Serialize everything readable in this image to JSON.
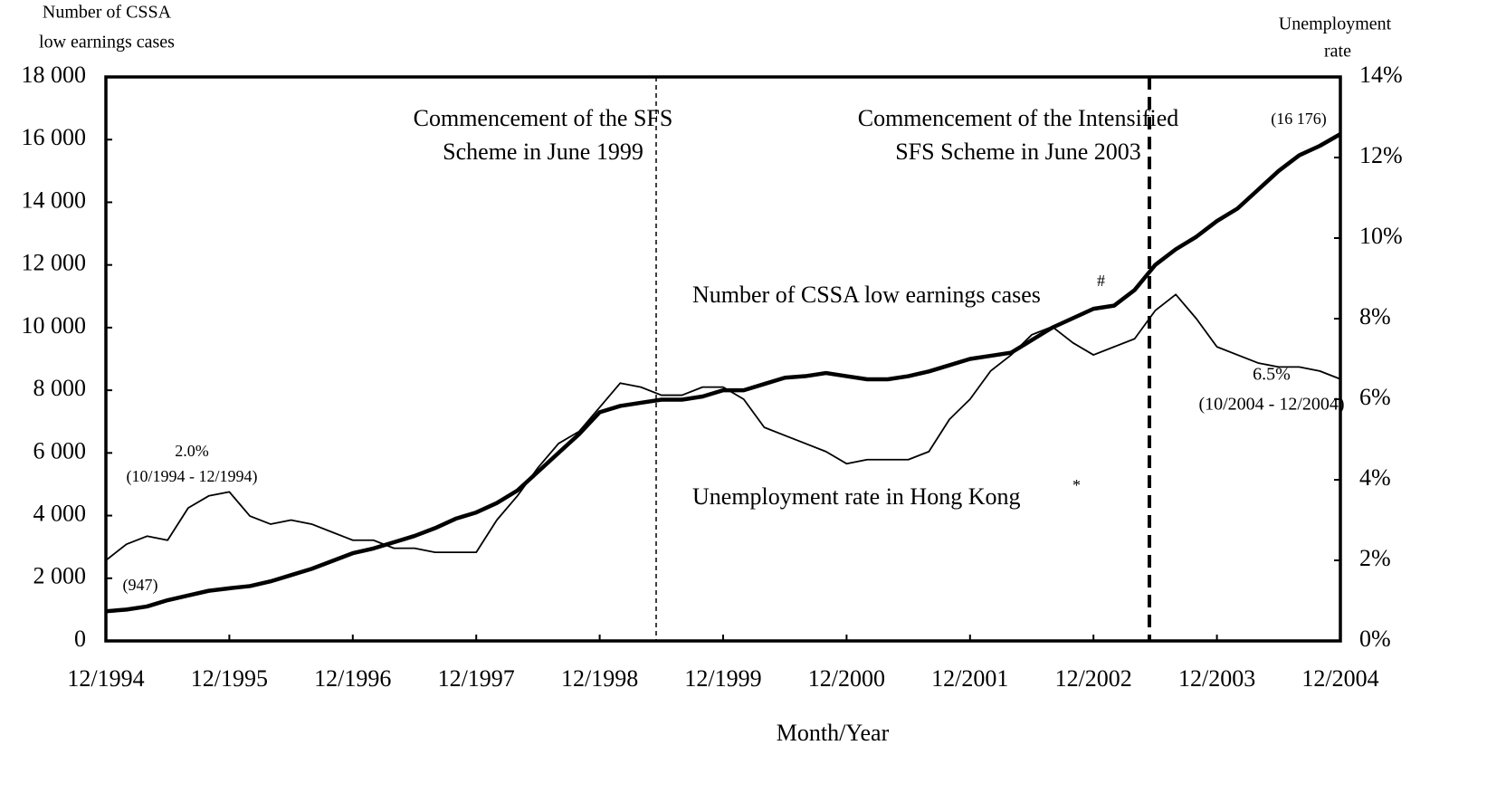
{
  "chart_data": {
    "type": "line",
    "y_label": [
      "Number of CSSA",
      "low earnings cases"
    ],
    "y2_label": [
      "Unemployment",
      "rate"
    ],
    "x_label": "Month/Year",
    "categories": [
      "12/1994",
      null,
      null,
      null,
      null,
      null,
      "12/1995",
      null,
      null,
      null,
      null,
      null,
      "12/1996",
      null,
      null,
      null,
      null,
      null,
      "12/1997",
      null,
      null,
      null,
      null,
      null,
      "12/1998",
      null,
      null,
      null,
      null,
      null,
      "12/1999",
      null,
      null,
      null,
      null,
      null,
      "12/2000",
      null,
      null,
      null,
      null,
      null,
      "12/2001",
      null,
      null,
      null,
      null,
      null,
      "12/2002",
      null,
      null,
      null,
      null,
      null,
      "12/2003",
      null,
      null,
      null,
      null,
      null,
      "12/2004"
    ],
    "series": [
      {
        "name": "Number of CSSA low earnings cases",
        "color": "#000000",
        "axis": "y",
        "values": [
          947,
          1000,
          1100,
          1300,
          1450,
          1600,
          1680,
          1750,
          1900,
          2100,
          2300,
          2550,
          2800,
          2950,
          3150,
          3350,
          3600,
          3900,
          4100,
          4400,
          4800,
          5400,
          6000,
          6600,
          7300,
          7500,
          7600,
          7700,
          7700,
          7800,
          8000,
          8000,
          8200,
          8400,
          8450,
          8550,
          8450,
          8350,
          8350,
          8450,
          8600,
          8800,
          9000,
          9100,
          9200,
          9600,
          10000,
          10300,
          10600,
          10700,
          11200,
          12000,
          12500,
          12900,
          13400,
          13800,
          14400,
          15000,
          15500,
          15800,
          16176
        ],
        "value_labels": [
          "(947)",
          null,
          null,
          null,
          null,
          null,
          null,
          null,
          null,
          null,
          null,
          null,
          null,
          null,
          null,
          null,
          null,
          null,
          null,
          null,
          null,
          null,
          null,
          null,
          null,
          null,
          null,
          null,
          null,
          null,
          null,
          null,
          null,
          null,
          null,
          null,
          null,
          null,
          null,
          null,
          null,
          null,
          null,
          null,
          null,
          null,
          null,
          null,
          null,
          null,
          null,
          null,
          null,
          null,
          null,
          null,
          null,
          null,
          null,
          null,
          "(16 176)"
        ]
      },
      {
        "name": "Unemployment rate in Hong Kong",
        "color": "#000000",
        "axis": "y2",
        "values": [
          2.0,
          2.4,
          2.6,
          2.5,
          3.3,
          3.6,
          3.7,
          3.1,
          2.9,
          3.0,
          2.9,
          2.7,
          2.5,
          2.5,
          2.3,
          2.3,
          2.2,
          2.2,
          2.2,
          3.0,
          3.6,
          4.3,
          4.9,
          5.2,
          5.8,
          6.4,
          6.3,
          6.1,
          6.1,
          6.3,
          6.3,
          6.0,
          5.3,
          5.1,
          4.9,
          4.7,
          4.4,
          4.5,
          4.5,
          4.5,
          4.7,
          5.5,
          6.0,
          6.7,
          7.1,
          7.6,
          7.8,
          7.4,
          7.1,
          7.3,
          7.5,
          8.2,
          8.6,
          8.0,
          7.3,
          7.1,
          6.9,
          6.8,
          6.8,
          6.7,
          6.5
        ],
        "value_labels": [
          "2.0%",
          null,
          null,
          null,
          null,
          null,
          null,
          null,
          null,
          null,
          null,
          null,
          null,
          null,
          null,
          null,
          null,
          null,
          null,
          null,
          null,
          null,
          null,
          null,
          null,
          null,
          null,
          null,
          null,
          null,
          null,
          null,
          null,
          null,
          null,
          null,
          null,
          null,
          null,
          null,
          null,
          null,
          null,
          null,
          null,
          null,
          null,
          null,
          null,
          null,
          null,
          null,
          null,
          null,
          null,
          null,
          null,
          null,
          null,
          null,
          "6.5%"
        ]
      }
    ],
    "ylim": [
      0,
      18000
    ],
    "yticks": [
      0,
      {
        "value": 2000,
        "label": "2 000"
      },
      {
        "value": 4000,
        "label": "4 000"
      },
      {
        "value": 6000,
        "label": "6 000"
      },
      {
        "value": 8000,
        "label": "8 000"
      },
      {
        "value": 10000,
        "label": "10 000"
      },
      {
        "value": 12000,
        "label": "12 000"
      },
      {
        "value": 14000,
        "label": "14 000"
      },
      {
        "value": 16000,
        "label": "16 000"
      },
      {
        "value": 18000,
        "label": "18 000"
      }
    ],
    "y2lim": [
      0,
      14
    ],
    "y2ticks": [
      {
        "value": 0,
        "label": "0%"
      },
      {
        "value": 2,
        "label": "2%"
      },
      {
        "value": 4,
        "label": "4%"
      },
      {
        "value": 6,
        "label": "6%"
      },
      {
        "value": 8,
        "label": "8%"
      },
      {
        "value": 10,
        "label": "10%"
      },
      {
        "value": 12,
        "label": "12%"
      },
      {
        "value": 14,
        "label": "14%"
      }
    ],
    "grid": false,
    "annotations": [
      "Commencement of the SFS",
      "Scheme in June 1999",
      "Commencement of the Intensified",
      "SFS Scheme in June 2003",
      "Number of CSSA low earnings cases",
      "#",
      "Unemployment rate in Hong Kong",
      "*",
      "(10/1994 - 12/1994)",
      "(10/2004 - 12/2004)"
    ]
  }
}
